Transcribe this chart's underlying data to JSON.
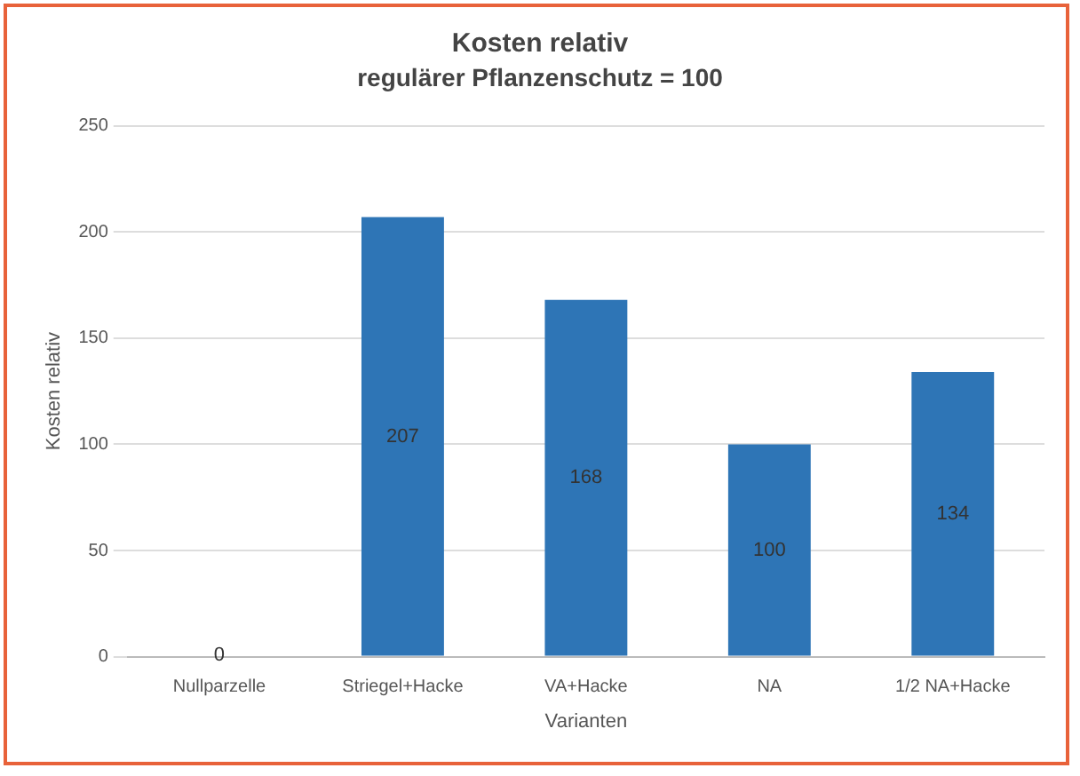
{
  "chart_data": {
    "type": "bar",
    "title": "Kosten relativ",
    "subtitle": "regulärer Pflanzenschutz = 100",
    "xlabel": "Varianten",
    "ylabel": "Kosten relativ",
    "categories": [
      "Nullparzelle",
      "Striegel+Hacke",
      "VA+Hacke",
      "NA",
      "1/2 NA+Hacke"
    ],
    "values": [
      0,
      207,
      168,
      100,
      134
    ],
    "color": "#2e75b6",
    "ylim": [
      0,
      250
    ],
    "yticks": [
      0,
      50,
      100,
      150,
      200,
      250
    ],
    "grid": "y",
    "data_labels": true,
    "legend": false
  }
}
